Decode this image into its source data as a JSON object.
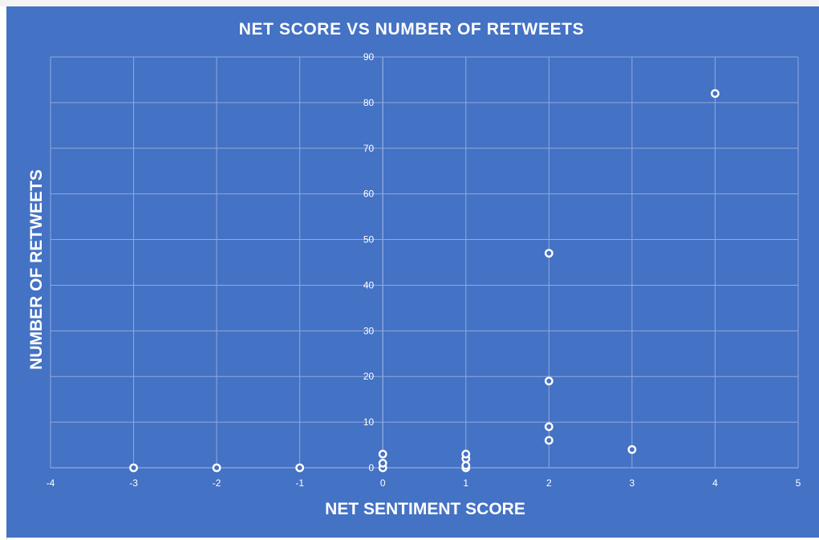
{
  "colors": {
    "chart_background": "#4472c4",
    "gridline": "#8faadc",
    "text": "#ffffff",
    "marker_stroke": "#ffffff"
  },
  "chart_data": {
    "type": "scatter",
    "title": "NET SCORE VS NUMBER OF RETWEETS",
    "xlabel": "NET SENTIMENT SCORE",
    "ylabel": "NUMBER OF RETWEETS",
    "xlim": [
      -4,
      5
    ],
    "ylim": [
      0,
      90
    ],
    "xticks": [
      -4,
      -3,
      -2,
      -1,
      0,
      1,
      2,
      3,
      4,
      5
    ],
    "yticks": [
      0,
      10,
      20,
      30,
      40,
      50,
      60,
      70,
      80,
      90
    ],
    "grid": true,
    "legend": "none",
    "marker": "hollow-circle",
    "points": [
      {
        "x": -3,
        "y": 0
      },
      {
        "x": -2,
        "y": 0
      },
      {
        "x": -1,
        "y": 0
      },
      {
        "x": 0,
        "y": 0
      },
      {
        "x": 0,
        "y": 1
      },
      {
        "x": 0,
        "y": 3
      },
      {
        "x": 1,
        "y": 0
      },
      {
        "x": 1,
        "y": 0.5
      },
      {
        "x": 1,
        "y": 2
      },
      {
        "x": 1,
        "y": 3
      },
      {
        "x": 2,
        "y": 6
      },
      {
        "x": 2,
        "y": 9
      },
      {
        "x": 2,
        "y": 19
      },
      {
        "x": 2,
        "y": 47
      },
      {
        "x": 3,
        "y": 4
      },
      {
        "x": 4,
        "y": 82
      }
    ]
  }
}
